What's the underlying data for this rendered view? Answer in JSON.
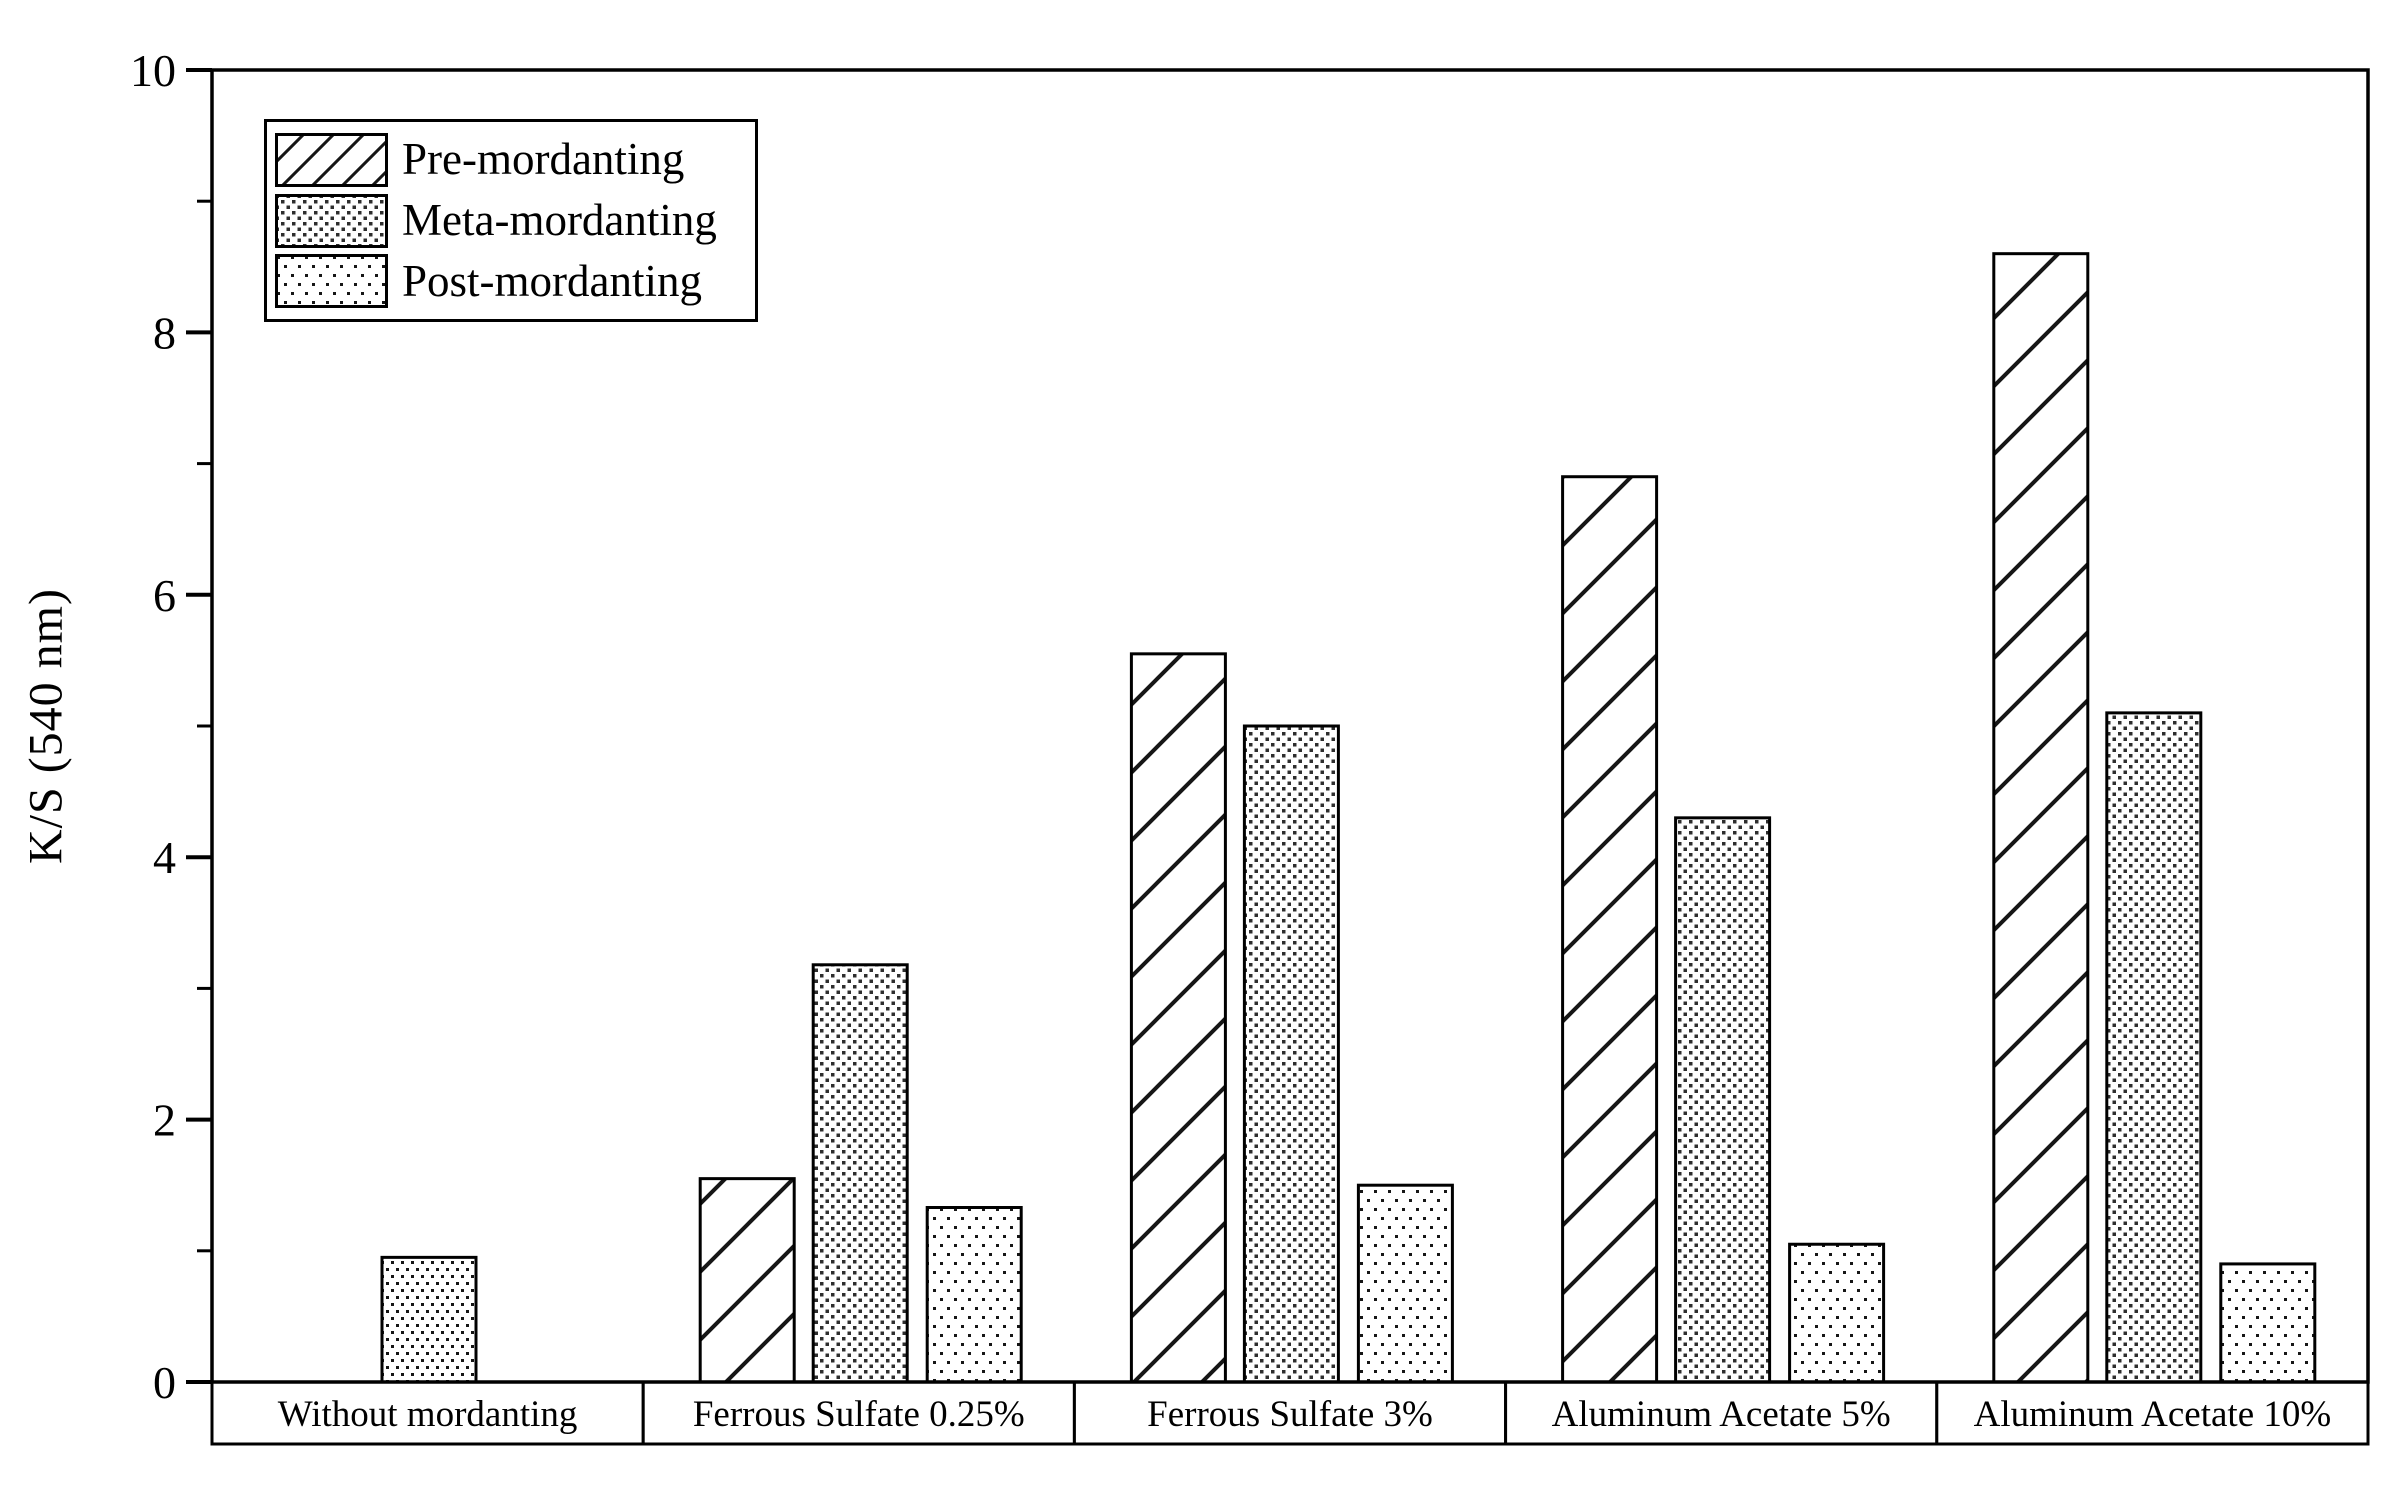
{
  "figure": {
    "background_color": "#ffffff",
    "ink_color": "#000000"
  },
  "y_axis": {
    "label": "K/S (540 nm)",
    "min": 0,
    "max": 10,
    "major_ticks": [
      0,
      2,
      4,
      6,
      8,
      10
    ],
    "minor_ticks": [
      1,
      3,
      5,
      7,
      9
    ]
  },
  "legend": {
    "items": [
      {
        "label": "Pre-mordanting",
        "pattern": "diagonal-hatch"
      },
      {
        "label": "Meta-mordanting",
        "pattern": "dense-dots"
      },
      {
        "label": "Post-mordanting",
        "pattern": "sparse-dots"
      }
    ]
  },
  "chart_data": {
    "type": "bar",
    "title": "",
    "xlabel": "",
    "ylabel": "K/S (540 nm)",
    "ylim": [
      0,
      10
    ],
    "grid": false,
    "legend_position": "top-left",
    "categories": [
      "Without mordanting",
      "Ferrous Sulfate 0.25%",
      "Ferrous Sulfate 3%",
      "Aluminum Acetate 5%",
      "Aluminum Acetate 10%"
    ],
    "series": [
      {
        "name": "Pre-mordanting",
        "pattern": "diagonal-hatch",
        "values": [
          null,
          1.55,
          5.55,
          6.9,
          8.6
        ]
      },
      {
        "name": "Meta-mordanting",
        "pattern": "dense-dots",
        "values": [
          null,
          3.18,
          5.0,
          4.3,
          5.1
        ]
      },
      {
        "name": "Post-mordanting",
        "pattern": "sparse-dots",
        "values": [
          null,
          1.33,
          1.5,
          1.05,
          0.9
        ]
      }
    ],
    "control_bar": {
      "category": "Without mordanting",
      "value": 0.95,
      "pattern": "medium-dots",
      "slot": "middle"
    }
  }
}
